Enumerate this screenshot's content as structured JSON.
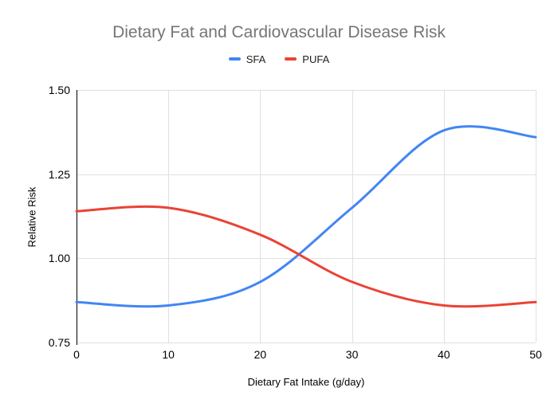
{
  "chart_data": {
    "type": "line",
    "smooth": true,
    "title": "Dietary Fat and Cardiovascular Disease Risk",
    "xlabel": "Dietary Fat Intake (g/day)",
    "ylabel": "Relative Risk",
    "xlim": [
      0,
      50
    ],
    "ylim": [
      0.75,
      1.5
    ],
    "grid": true,
    "legend_position": "top",
    "x": [
      0,
      10,
      20,
      30,
      40,
      50
    ],
    "series": [
      {
        "name": "SFA",
        "color": "#4285f4",
        "values": [
          0.87,
          0.86,
          0.93,
          1.15,
          1.38,
          1.36
        ]
      },
      {
        "name": "PUFA",
        "color": "#ea4335",
        "values": [
          1.14,
          1.15,
          1.07,
          0.93,
          0.86,
          0.87
        ]
      }
    ],
    "x_ticks": [
      {
        "value": 0,
        "label": "0"
      },
      {
        "value": 10,
        "label": "10"
      },
      {
        "value": 20,
        "label": "20"
      },
      {
        "value": 30,
        "label": "30"
      },
      {
        "value": 40,
        "label": "40"
      },
      {
        "value": 50,
        "label": "50"
      }
    ],
    "y_ticks": [
      {
        "value": 0.75,
        "label": "0.75"
      },
      {
        "value": 1.0,
        "label": "1.00"
      },
      {
        "value": 1.25,
        "label": "1.25"
      },
      {
        "value": 1.5,
        "label": "1.50"
      }
    ]
  },
  "colors": {
    "sfa_line": "#4285f4",
    "pufa_line": "#ea4335",
    "gridline": "#e0e0e0",
    "axis_line": "#000000",
    "title_text": "#757575",
    "tick_text": "#000000",
    "legend_text": "#212121"
  }
}
